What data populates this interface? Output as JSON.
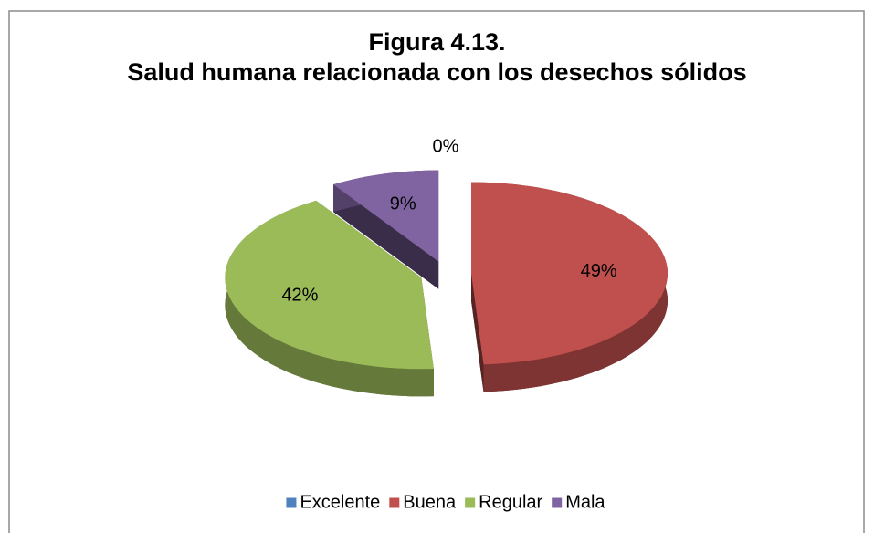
{
  "chart_data": {
    "type": "pie3d",
    "title": "Figura 4.13.",
    "subtitle": "Salud humana relacionada con los desechos sólidos",
    "categories": [
      "Excelente",
      "Buena",
      "Regular",
      "Mala"
    ],
    "values": [
      0,
      49,
      42,
      9
    ],
    "value_labels": [
      "0%",
      "49%",
      "42%",
      "9%"
    ],
    "colors": [
      "#4f81bd",
      "#c0504d",
      "#9bbb59",
      "#8064a2"
    ],
    "legend": "bottom"
  }
}
